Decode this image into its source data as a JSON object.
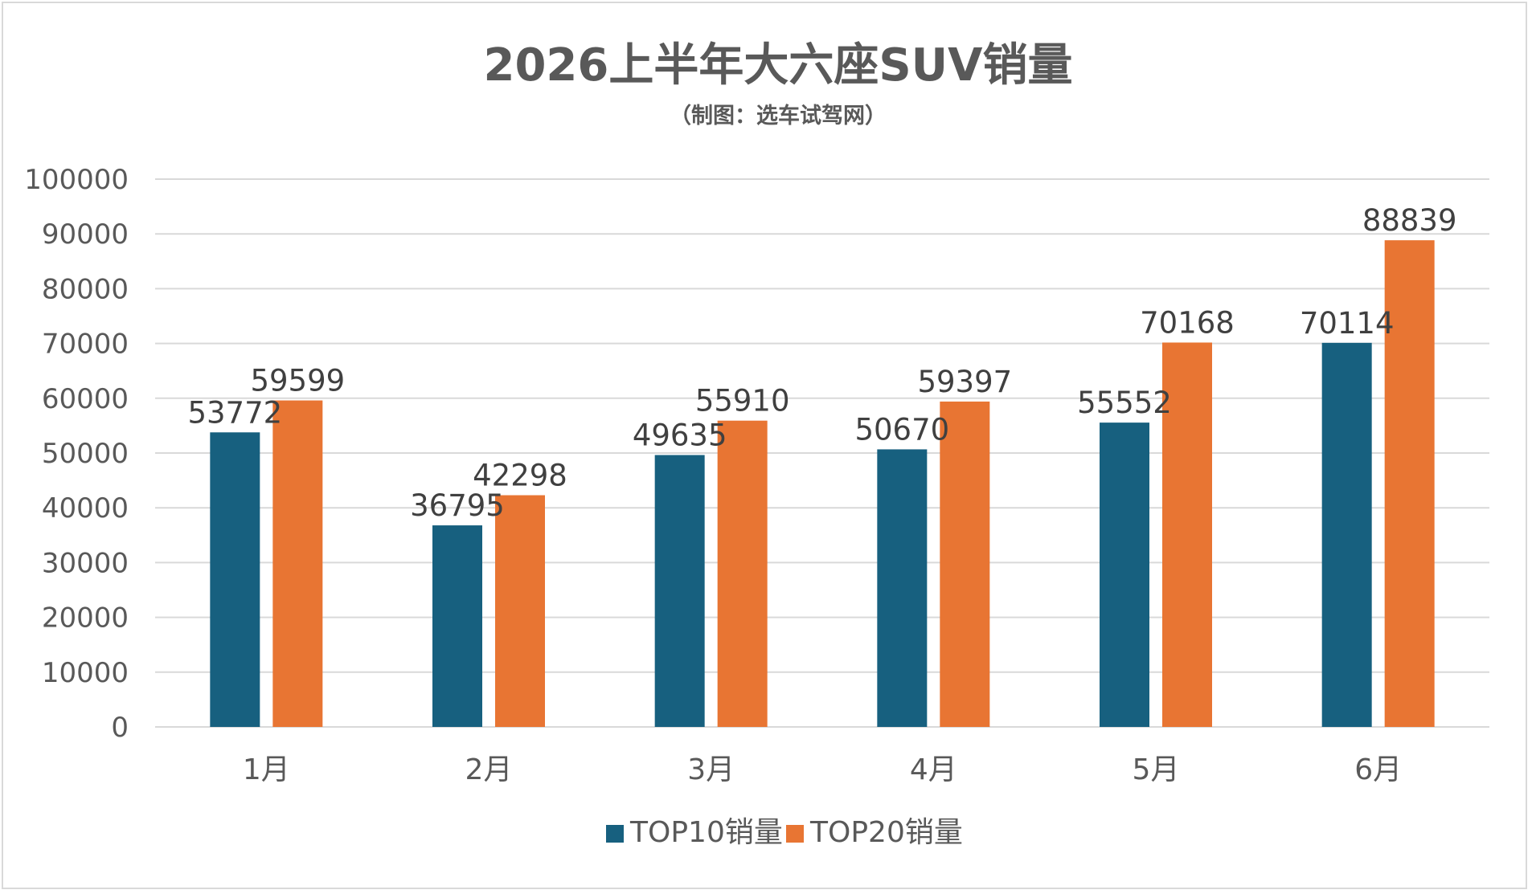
{
  "chart_data": {
    "type": "bar",
    "title": "2026上半年大六座SUV销量",
    "subtitle": "（制图：选车试驾网）",
    "categories": [
      "1月",
      "2月",
      "3月",
      "4月",
      "5月",
      "6月"
    ],
    "series": [
      {
        "name": "TOP10销量",
        "color": "#17607f",
        "values": [
          53772,
          36795,
          49635,
          50670,
          55552,
          70114
        ]
      },
      {
        "name": "TOP20销量",
        "color": "#e87533",
        "values": [
          59599,
          42298,
          55910,
          59397,
          70168,
          88839
        ]
      }
    ],
    "ylim": [
      0,
      100000
    ],
    "yticks": [
      "0",
      "10000",
      "20000",
      "30000",
      "40000",
      "50000",
      "60000",
      "70000",
      "80000",
      "90000",
      "100000"
    ],
    "grid": true,
    "legend_position": "bottom",
    "data_labels": true
  }
}
